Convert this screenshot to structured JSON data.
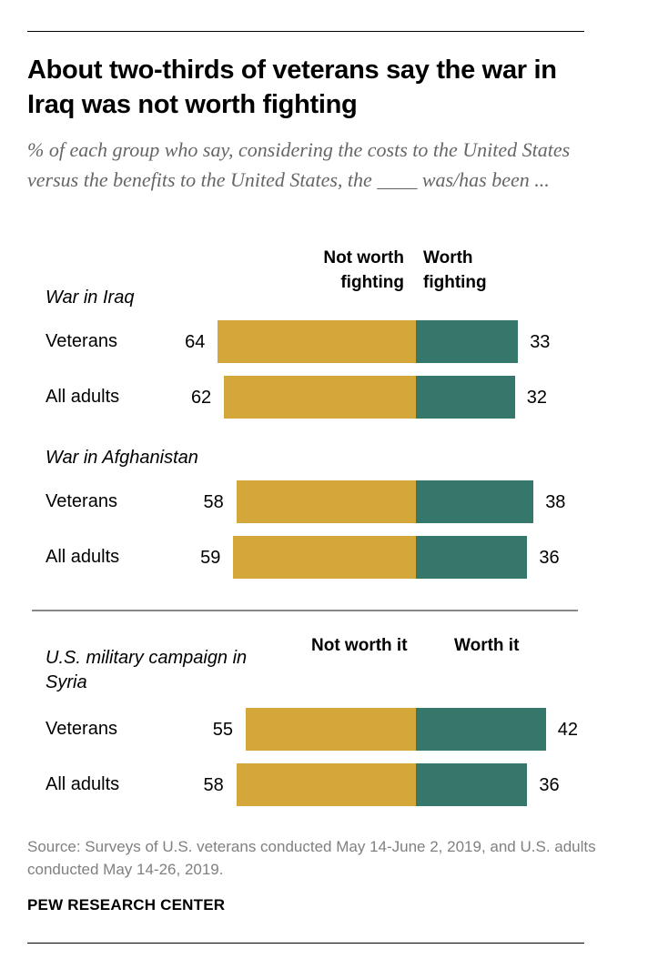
{
  "title": "About two-thirds of veterans say the war in Iraq was not worth fighting",
  "subtitle": "% of each group who say, considering the costs to the United States versus the benefits to the United States, the ____ was/has been ...",
  "headers_top": {
    "neg": "Not worth fighting",
    "pos": "Worth fighting"
  },
  "headers_bottom": {
    "neg": "Not worth it",
    "pos": "Worth it"
  },
  "source": "Source: Surveys of U.S. veterans conducted May 14-June 2, 2019, and U.S. adults conducted May 14-26, 2019.",
  "brand": "PEW RESEARCH CENTER",
  "colors": {
    "neg": "#d3a73a",
    "pos": "#35776a"
  },
  "chart_data": {
    "type": "bar",
    "orientation": "horizontal-diverging",
    "title": "About two-thirds of veterans say the war in Iraq was not worth fighting",
    "series_names": [
      "Not worth fighting / Not worth it",
      "Worth fighting / Worth it"
    ],
    "groups": [
      {
        "label": "War in Iraq",
        "rows": [
          {
            "label": "Veterans",
            "neg": 64,
            "pos": 33
          },
          {
            "label": "All adults",
            "neg": 62,
            "pos": 32
          }
        ]
      },
      {
        "label": "War in Afghanistan",
        "rows": [
          {
            "label": "Veterans",
            "neg": 58,
            "pos": 38
          },
          {
            "label": "All adults",
            "neg": 59,
            "pos": 36
          }
        ]
      },
      {
        "label": "U.S. military campaign in Syria",
        "rows": [
          {
            "label": "Veterans",
            "neg": 55,
            "pos": 42
          },
          {
            "label": "All adults",
            "neg": 58,
            "pos": 36
          }
        ]
      }
    ]
  }
}
